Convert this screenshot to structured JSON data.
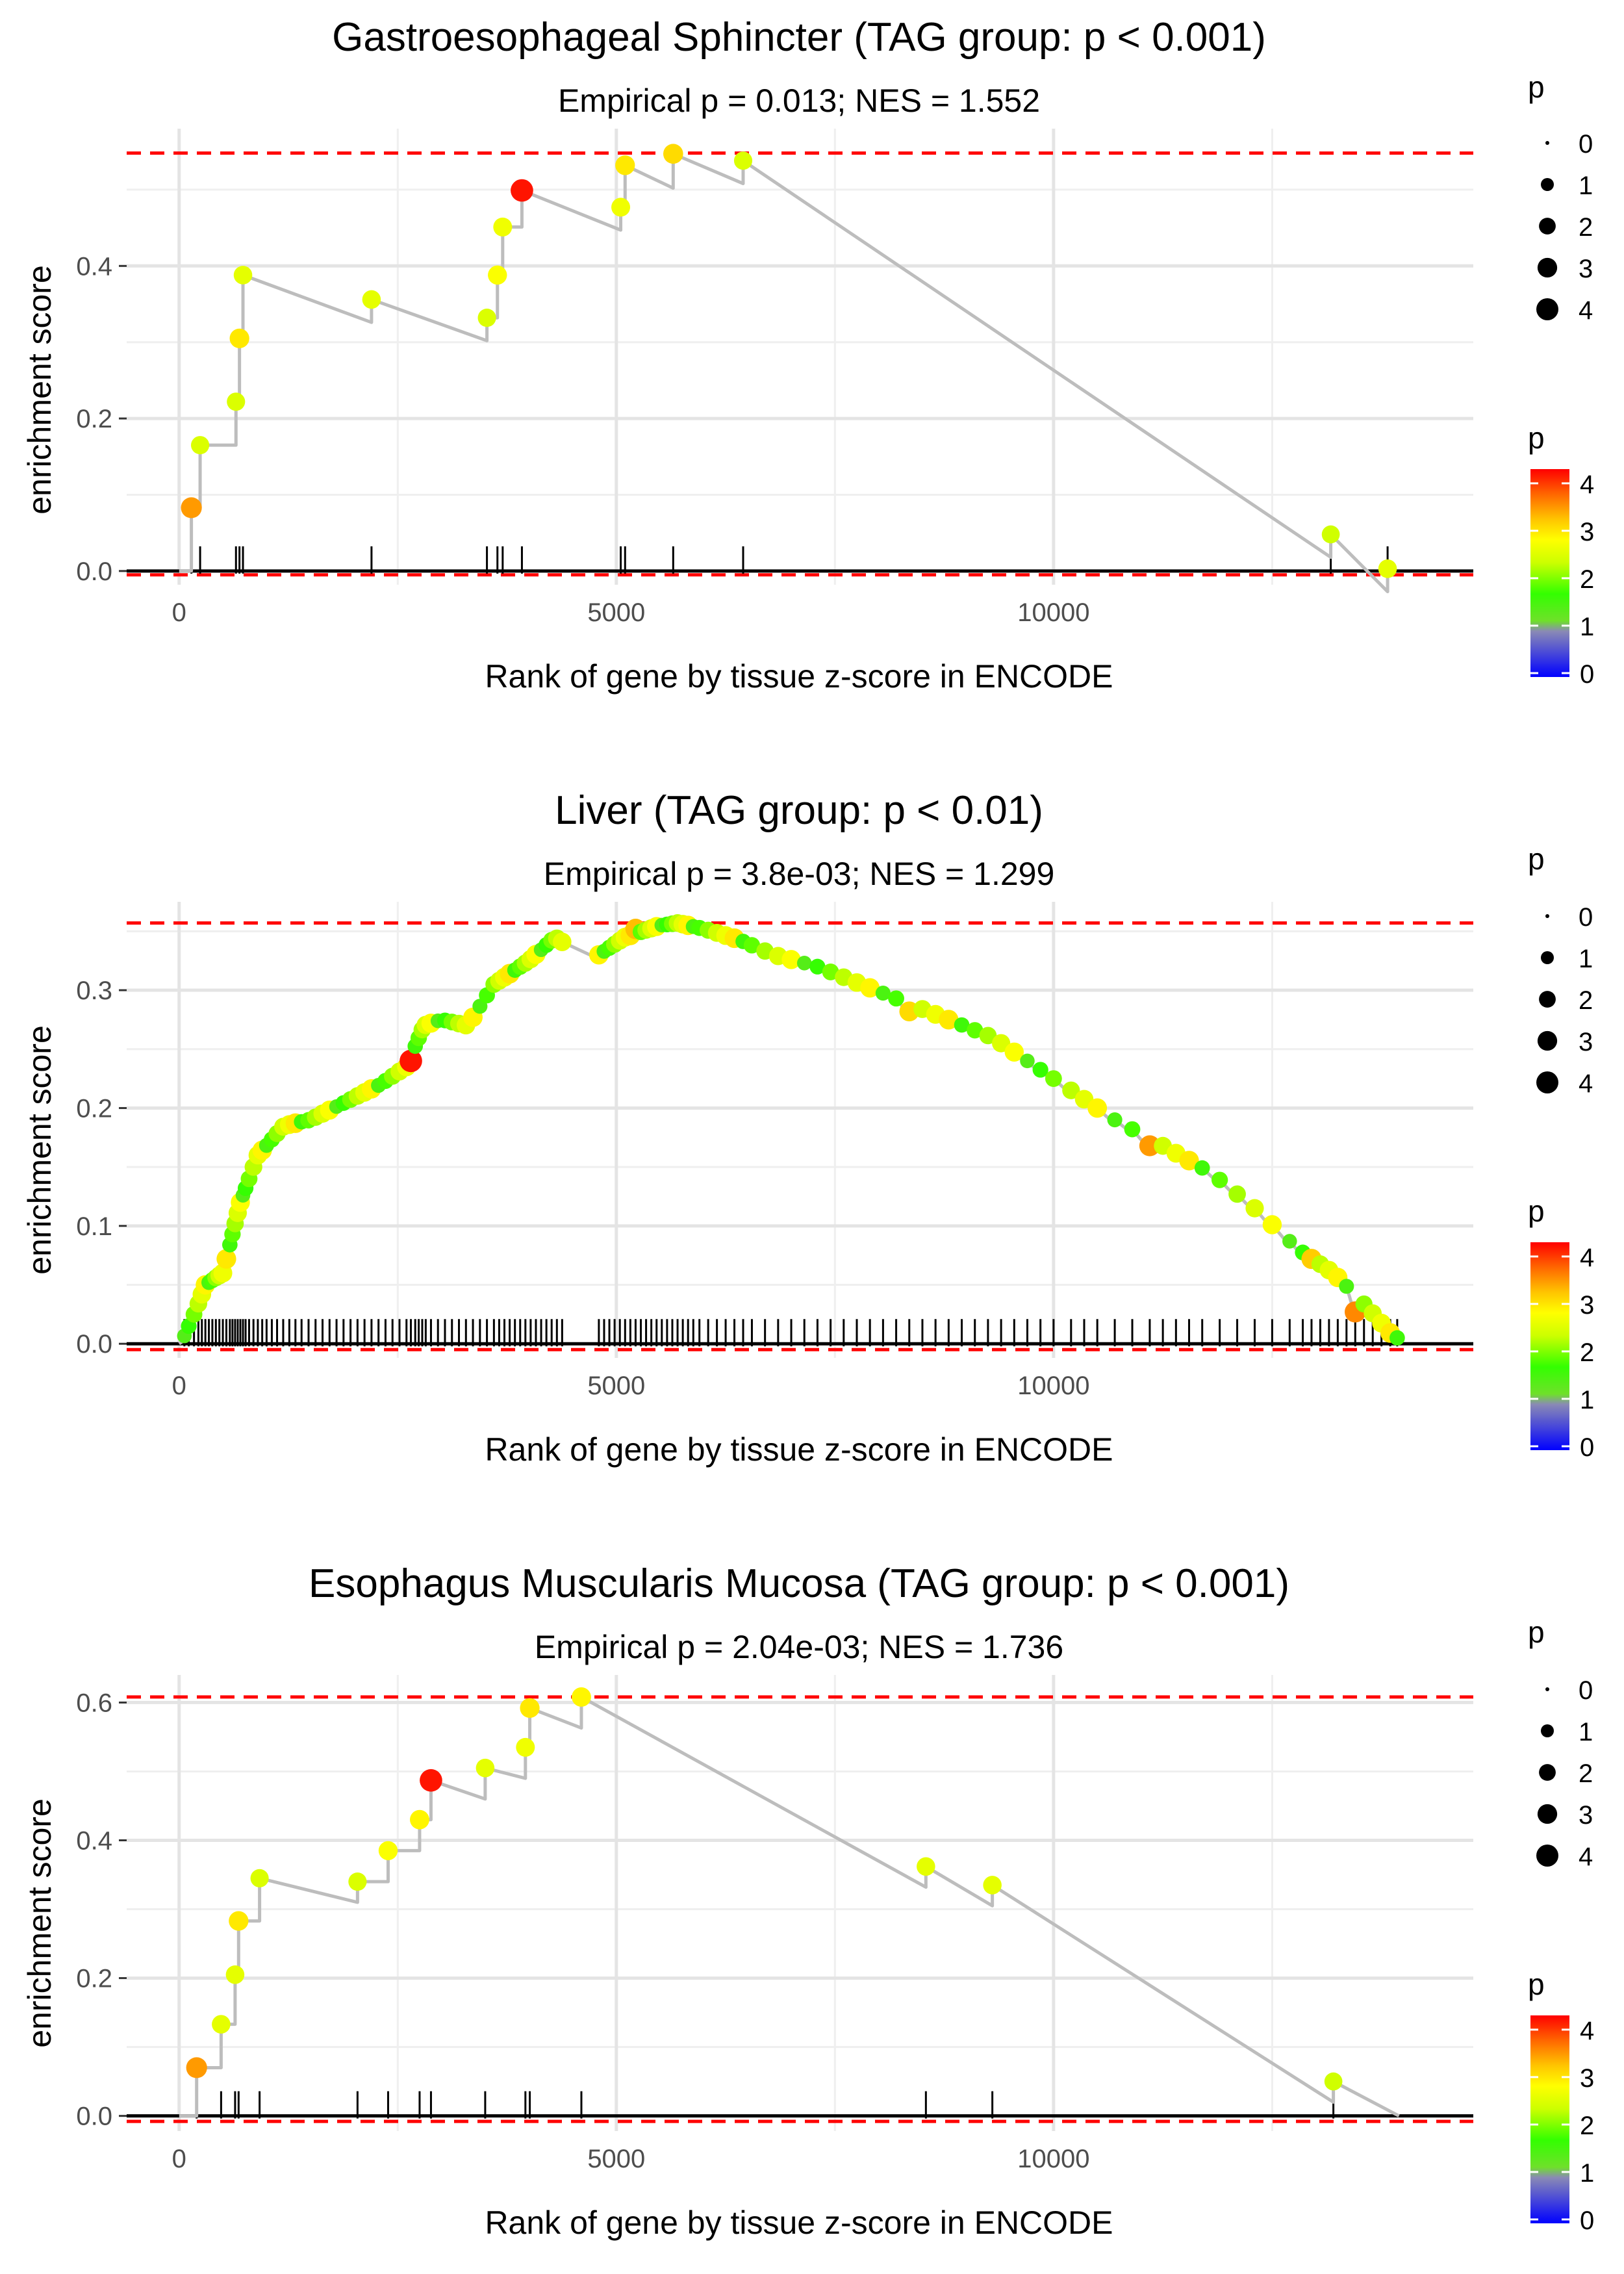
{
  "chart_data": [
    {
      "type": "line",
      "title": "Gastroesophageal Sphincter (TAG group: p < 0.001)",
      "subtitle": "Empirical p = 0.013; NES = 1.552",
      "xlabel": "Rank of gene by tissue z-score in ENCODE",
      "ylabel": "enrichment score",
      "xlim": [
        -600,
        14800
      ],
      "ylim": [
        -0.018,
        0.58
      ],
      "xticks": [
        0,
        5000,
        10000
      ],
      "xtick_labels": [
        "0",
        "5000",
        "10000"
      ],
      "yticks": [
        0,
        0.2,
        0.4
      ],
      "ytick_labels": [
        "0.0",
        "0.2",
        "0.4"
      ],
      "max_es": 0.548,
      "min_es": -0.005,
      "end_rank": 13850,
      "hits": [
        {
          "rank": 140,
          "es": 0.083,
          "p": 3.5
        },
        {
          "rank": 240,
          "es": 0.165,
          "p": 2.5
        },
        {
          "rank": 650,
          "es": 0.222,
          "p": 2.5
        },
        {
          "rank": 690,
          "es": 0.305,
          "p": 3.0
        },
        {
          "rank": 730,
          "es": 0.388,
          "p": 2.6
        },
        {
          "rank": 2200,
          "es": 0.356,
          "p": 2.6
        },
        {
          "rank": 3520,
          "es": 0.332,
          "p": 2.5
        },
        {
          "rank": 3640,
          "es": 0.388,
          "p": 2.8
        },
        {
          "rank": 3700,
          "es": 0.451,
          "p": 2.7
        },
        {
          "rank": 3920,
          "es": 0.499,
          "p": 4.2
        },
        {
          "rank": 5050,
          "es": 0.477,
          "p": 2.7
        },
        {
          "rank": 5100,
          "es": 0.532,
          "p": 3.0
        },
        {
          "rank": 5650,
          "es": 0.547,
          "p": 3.1
        },
        {
          "rank": 6450,
          "es": 0.538,
          "p": 2.5
        },
        {
          "rank": 13170,
          "es": 0.048,
          "p": 2.4
        },
        {
          "rank": 13820,
          "es": 0.003,
          "p": 2.6
        }
      ],
      "legend": {
        "size_title": "p",
        "size_labels": [
          "0",
          "1",
          "2",
          "3",
          "4"
        ],
        "color_title": "p",
        "color_labels": [
          "0",
          "1",
          "2",
          "3",
          "4"
        ]
      }
    },
    {
      "type": "line",
      "title": "Liver (TAG group: p < 0.01)",
      "subtitle": "Empirical p = 3.8e-03; NES = 1.299",
      "xlabel": "Rank of gene by tissue z-score in ENCODE",
      "ylabel": "enrichment score",
      "xlim": [
        -600,
        14800
      ],
      "ylim": [
        -0.012,
        0.375
      ],
      "xticks": [
        0,
        5000,
        10000
      ],
      "xtick_labels": [
        "0",
        "5000",
        "10000"
      ],
      "yticks": [
        0,
        0.1,
        0.2,
        0.3
      ],
      "ytick_labels": [
        "0.0",
        "0.1",
        "0.2",
        "0.3"
      ],
      "max_es": 0.357,
      "min_es": -0.005,
      "end_rank": 13950,
      "hit_step": 0.0036,
      "curve": [
        [
          50,
          0.005
        ],
        [
          200,
          0.03
        ],
        [
          300,
          0.05
        ],
        [
          500,
          0.06
        ],
        [
          600,
          0.09
        ],
        [
          700,
          0.12
        ],
        [
          900,
          0.16
        ],
        [
          1200,
          0.185
        ],
        [
          1500,
          0.19
        ],
        [
          1900,
          0.205
        ],
        [
          2300,
          0.22
        ],
        [
          2600,
          0.235
        ],
        [
          2800,
          0.27
        ],
        [
          3000,
          0.275
        ],
        [
          3300,
          0.27
        ],
        [
          3600,
          0.305
        ],
        [
          4000,
          0.325
        ],
        [
          4300,
          0.345
        ],
        [
          4700,
          0.325
        ],
        [
          5100,
          0.345
        ],
        [
          5500,
          0.355
        ],
        [
          5700,
          0.357
        ],
        [
          6000,
          0.352
        ],
        [
          6400,
          0.343
        ],
        [
          6800,
          0.33
        ],
        [
          7300,
          0.32
        ],
        [
          7800,
          0.305
        ],
        [
          8300,
          0.29
        ],
        [
          8800,
          0.275
        ],
        [
          9300,
          0.26
        ],
        [
          9700,
          0.24
        ],
        [
          10200,
          0.215
        ],
        [
          10700,
          0.19
        ],
        [
          11200,
          0.17
        ],
        [
          11800,
          0.145
        ],
        [
          12300,
          0.115
        ],
        [
          12800,
          0.08
        ],
        [
          13200,
          0.06
        ],
        [
          13600,
          0.03
        ],
        [
          13900,
          0.005
        ]
      ],
      "hit_ranks": [
        60,
        110,
        170,
        220,
        260,
        300,
        340,
        380,
        420,
        460,
        500,
        540,
        580,
        610,
        640,
        670,
        700,
        730,
        760,
        800,
        850,
        900,
        950,
        1000,
        1060,
        1120,
        1190,
        1260,
        1330,
        1400,
        1480,
        1560,
        1640,
        1720,
        1800,
        1880,
        1960,
        2040,
        2120,
        2200,
        2280,
        2360,
        2440,
        2520,
        2600,
        2650,
        2700,
        2740,
        2780,
        2820,
        2880,
        2960,
        3040,
        3120,
        3200,
        3280,
        3360,
        3440,
        3520,
        3600,
        3660,
        3720,
        3780,
        3840,
        3900,
        3960,
        4020,
        4080,
        4140,
        4200,
        4260,
        4320,
        4380,
        4800,
        4860,
        4920,
        4980,
        5040,
        5100,
        5160,
        5220,
        5280,
        5340,
        5400,
        5460,
        5520,
        5580,
        5640,
        5700,
        5760,
        5820,
        5880,
        5950,
        6050,
        6150,
        6250,
        6350,
        6450,
        6550,
        6700,
        6850,
        7000,
        7150,
        7300,
        7450,
        7600,
        7750,
        7900,
        8050,
        8200,
        8350,
        8500,
        8650,
        8800,
        8950,
        9100,
        9250,
        9400,
        9550,
        9700,
        9850,
        10000,
        10200,
        10350,
        10500,
        10700,
        10900,
        11100,
        11250,
        11400,
        11550,
        11700,
        11900,
        12100,
        12300,
        12500,
        12700,
        12850,
        12950,
        13050,
        13150,
        13250,
        13350,
        13450,
        13550,
        13650,
        13750,
        13850,
        13930
      ],
      "highlights": [
        {
          "rank": 2650,
          "es": 0.24,
          "p": 4.2
        },
        {
          "rank": 11050,
          "es": 0.168,
          "p": 3.5
        },
        {
          "rank": 13420,
          "es": 0.027,
          "p": 3.6
        },
        {
          "rank": 12950,
          "es": 0.072,
          "p": 3.2
        },
        {
          "rank": 5250,
          "es": 0.352,
          "p": 3.3
        },
        {
          "rank": 8400,
          "es": 0.282,
          "p": 3.1
        }
      ],
      "legend": {
        "size_title": "p",
        "size_labels": [
          "0",
          "1",
          "2",
          "3",
          "4"
        ],
        "color_title": "p",
        "color_labels": [
          "0",
          "1",
          "2",
          "3",
          "4"
        ]
      }
    },
    {
      "type": "line",
      "title": "Esophagus Muscularis Mucosa (TAG group: p < 0.001)",
      "subtitle": "Empirical p = 2.04e-03; NES = 1.736",
      "xlabel": "Rank of gene by tissue z-score in ENCODE",
      "ylabel": "enrichment score",
      "xlim": [
        -600,
        14800
      ],
      "ylim": [
        -0.022,
        0.64
      ],
      "xticks": [
        0,
        5000,
        10000
      ],
      "xtick_labels": [
        "0",
        "5000",
        "10000"
      ],
      "yticks": [
        0,
        0.2,
        0.4,
        0.6
      ],
      "ytick_labels": [
        "0.0",
        "0.2",
        "0.4",
        "0.6"
      ],
      "max_es": 0.608,
      "min_es": -0.008,
      "end_rank": 13950,
      "hits": [
        {
          "rank": 200,
          "es": 0.07,
          "p": 3.5
        },
        {
          "rank": 480,
          "es": 0.133,
          "p": 2.6
        },
        {
          "rank": 640,
          "es": 0.205,
          "p": 2.6
        },
        {
          "rank": 680,
          "es": 0.283,
          "p": 3.0
        },
        {
          "rank": 920,
          "es": 0.345,
          "p": 2.5
        },
        {
          "rank": 2040,
          "es": 0.34,
          "p": 2.5
        },
        {
          "rank": 2390,
          "es": 0.385,
          "p": 2.8
        },
        {
          "rank": 2750,
          "es": 0.43,
          "p": 2.9
        },
        {
          "rank": 2880,
          "es": 0.487,
          "p": 4.2
        },
        {
          "rank": 3500,
          "es": 0.505,
          "p": 2.6
        },
        {
          "rank": 3960,
          "es": 0.535,
          "p": 2.7
        },
        {
          "rank": 4010,
          "es": 0.592,
          "p": 3.0
        },
        {
          "rank": 4600,
          "es": 0.608,
          "p": 2.9
        },
        {
          "rank": 8540,
          "es": 0.362,
          "p": 2.6
        },
        {
          "rank": 9300,
          "es": 0.335,
          "p": 2.6
        },
        {
          "rank": 13200,
          "es": 0.05,
          "p": 2.4
        }
      ],
      "legend": {
        "size_title": "p",
        "size_labels": [
          "0",
          "1",
          "2",
          "3",
          "4"
        ],
        "color_title": "p",
        "color_labels": [
          "0",
          "1",
          "2",
          "3",
          "4"
        ]
      }
    }
  ]
}
